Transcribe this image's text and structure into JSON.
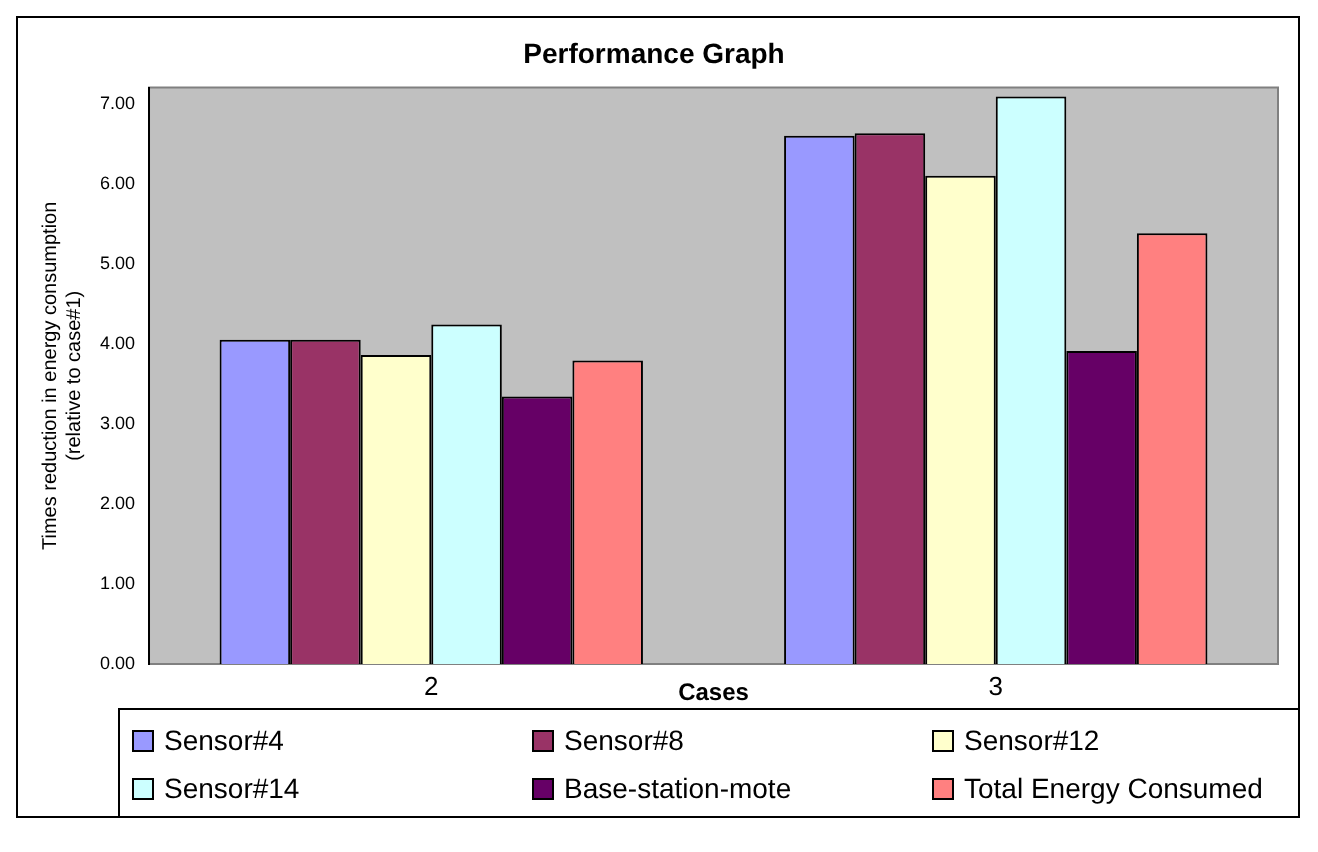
{
  "chart_data": {
    "type": "bar",
    "title": "Performance Graph",
    "xlabel": "Cases",
    "ylabel": "Times reduction in energy consumption\n(relative to case#1)",
    "categories": [
      "2",
      "3"
    ],
    "series": [
      {
        "name": "Sensor#4",
        "color": "#9999ff",
        "values": [
          4.05,
          6.6
        ]
      },
      {
        "name": "Sensor#8",
        "color": "#993366",
        "values": [
          4.05,
          6.63
        ]
      },
      {
        "name": "Sensor#12",
        "color": "#ffffcc",
        "values": [
          3.86,
          6.1
        ]
      },
      {
        "name": "Sensor#14",
        "color": "#ccffff",
        "values": [
          4.24,
          7.09
        ]
      },
      {
        "name": "Base-station-mote",
        "color": "#660066",
        "values": [
          3.34,
          3.91
        ]
      },
      {
        "name": "Total Energy Consumed",
        "color": "#ff8080",
        "values": [
          3.79,
          5.38
        ]
      }
    ],
    "ylim": [
      0,
      7.2
    ],
    "yticks": [
      {
        "value": 0,
        "label": "0.00"
      },
      {
        "value": 1,
        "label": "1.00"
      },
      {
        "value": 2,
        "label": "2.00"
      },
      {
        "value": 3,
        "label": "3.00"
      },
      {
        "value": 4,
        "label": "4.00"
      },
      {
        "value": 5,
        "label": "5.00"
      },
      {
        "value": 6,
        "label": "6.00"
      },
      {
        "value": 7,
        "label": "7.00"
      }
    ],
    "grid": false,
    "legend": "bottom"
  }
}
